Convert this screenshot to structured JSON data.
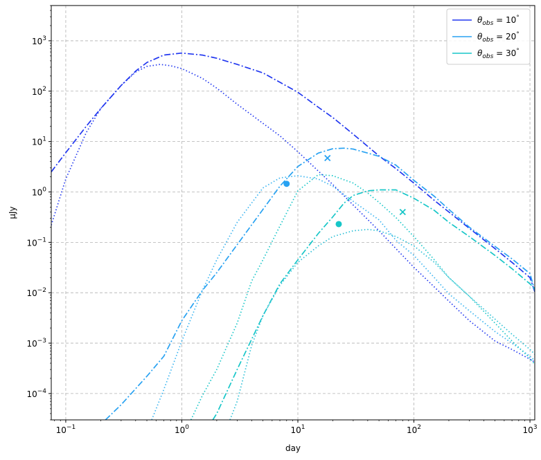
{
  "chart_data": {
    "type": "line",
    "xlabel": "day",
    "ylabel": "μJy",
    "xscale": "log",
    "yscale": "log",
    "xlim": [
      0.075,
      1100
    ],
    "ylim": [
      3e-05,
      5000
    ],
    "grid": true,
    "legend_position": "top-right",
    "x_ticks": [
      {
        "value": 0.1,
        "base": "10",
        "exp": "−1"
      },
      {
        "value": 1,
        "base": "10",
        "exp": "0"
      },
      {
        "value": 10,
        "base": "10",
        "exp": "1"
      },
      {
        "value": 100,
        "base": "10",
        "exp": "2"
      },
      {
        "value": 1000,
        "base": "10",
        "exp": "3"
      }
    ],
    "y_ticks": [
      {
        "value": 0.0001,
        "base": "10",
        "exp": "−4"
      },
      {
        "value": 0.001,
        "base": "10",
        "exp": "−3"
      },
      {
        "value": 0.01,
        "base": "10",
        "exp": "−2"
      },
      {
        "value": 0.1,
        "base": "10",
        "exp": "−1"
      },
      {
        "value": 1,
        "base": "10",
        "exp": "0"
      },
      {
        "value": 10,
        "base": "10",
        "exp": "1"
      },
      {
        "value": 100,
        "base": "10",
        "exp": "2"
      },
      {
        "value": 1000,
        "base": "10",
        "exp": "3"
      }
    ],
    "legend": [
      {
        "symbol": "θ",
        "sub": "obs",
        "rest": " = 10",
        "deg": "°",
        "color": "#2137f0"
      },
      {
        "symbol": "θ",
        "sub": "obs",
        "rest": " = 20",
        "deg": "°",
        "color": "#28a2f2"
      },
      {
        "symbol": "θ",
        "sub": "obs",
        "rest": " = 30",
        "deg": "°",
        "color": "#17c6c8"
      }
    ],
    "series": [
      {
        "style": "dashdot",
        "color": "#2137f0",
        "x": [
          0.075,
          0.1,
          0.15,
          0.2,
          0.3,
          0.4,
          0.5,
          0.7,
          1,
          1.5,
          2,
          3,
          5,
          7,
          10,
          15,
          20,
          30,
          50,
          70,
          100,
          150,
          200,
          300,
          500,
          700,
          1000,
          1100
        ],
        "y": [
          2.5,
          6,
          20,
          45,
          130,
          250,
          370,
          520,
          570,
          520,
          450,
          340,
          230,
          150,
          95,
          48,
          30,
          14,
          5.2,
          2.9,
          1.5,
          0.68,
          0.4,
          0.19,
          0.075,
          0.04,
          0.02,
          0.0105
        ]
      },
      {
        "style": "dotted",
        "color": "#2137f0",
        "x": [
          0.075,
          0.1,
          0.15,
          0.2,
          0.3,
          0.4,
          0.5,
          0.65,
          0.8,
          1,
          1.5,
          2,
          3,
          5,
          7,
          10,
          15,
          20,
          30,
          50,
          70,
          100,
          150,
          200,
          300,
          500,
          700,
          1000,
          1100
        ],
        "y": [
          0.22,
          1.8,
          15,
          45,
          130,
          240,
          310,
          340,
          320,
          280,
          180,
          115,
          55,
          23,
          13,
          6.3,
          2.6,
          1.4,
          0.55,
          0.17,
          0.075,
          0.032,
          0.013,
          0.0068,
          0.0028,
          0.0011,
          0.00075,
          0.00048,
          0.00042
        ]
      },
      {
        "style": "dashdot",
        "color": "#28a2f2",
        "x": [
          0.22,
          0.3,
          0.5,
          0.7,
          1,
          1.5,
          2,
          3,
          5,
          7,
          10,
          15,
          20,
          25,
          30,
          50,
          70,
          100,
          150,
          200,
          300,
          500,
          700,
          1000,
          1100
        ],
        "y": [
          3e-05,
          6e-05,
          0.00022,
          0.00055,
          0.0028,
          0.011,
          0.025,
          0.09,
          0.45,
          1.3,
          3.2,
          5.9,
          7.2,
          7.4,
          7.1,
          5.1,
          3.4,
          1.7,
          0.82,
          0.45,
          0.2,
          0.083,
          0.047,
          0.024,
          0.011
        ]
      },
      {
        "style": "dotted",
        "color": "#3ab4f0",
        "x": [
          0.55,
          0.7,
          1,
          1.5,
          2,
          3,
          5,
          7,
          10,
          15,
          20,
          30,
          50,
          70,
          100,
          150,
          200,
          300,
          500,
          700,
          1000,
          1100
        ],
        "y": [
          3e-05,
          0.00012,
          0.0011,
          0.011,
          0.045,
          0.25,
          1.2,
          1.9,
          2.1,
          1.8,
          1.3,
          0.65,
          0.28,
          0.11,
          0.055,
          0.02,
          0.0095,
          0.0044,
          0.0017,
          0.001,
          0.00055,
          0.00045
        ]
      },
      {
        "style": "dotted",
        "color": "#17c6c8",
        "x": [
          1.2,
          1.5,
          2,
          3,
          4,
          5,
          7,
          10,
          15,
          20,
          30,
          40,
          50,
          70,
          100,
          150,
          200,
          300,
          500,
          700,
          1000,
          1100
        ],
        "y": [
          3e-05,
          9e-05,
          0.0003,
          0.0025,
          0.017,
          0.045,
          0.21,
          1.05,
          2.2,
          2.1,
          1.5,
          0.95,
          0.62,
          0.31,
          0.13,
          0.045,
          0.02,
          0.0085,
          0.0025,
          0.0011,
          0.0005,
          0.00038
        ]
      },
      {
        "style": "dashdot",
        "color": "#17c6c8",
        "x": [
          1.85,
          2,
          3,
          5,
          7,
          10,
          15,
          20,
          25,
          30,
          40,
          50,
          70,
          100,
          150,
          200,
          300,
          500,
          700,
          1000,
          1100
        ],
        "y": [
          3e-05,
          4e-05,
          0.0003,
          0.0035,
          0.015,
          0.045,
          0.15,
          0.32,
          0.6,
          0.85,
          1.05,
          1.1,
          1.1,
          0.75,
          0.43,
          0.25,
          0.13,
          0.055,
          0.03,
          0.015,
          0.012
        ]
      },
      {
        "style": "dotted",
        "color": "#2bc0d6",
        "x": [
          2.6,
          3,
          4,
          5,
          7,
          10,
          15,
          20,
          30,
          40,
          50,
          70,
          100,
          150,
          200,
          300,
          500,
          700,
          1000,
          1100
        ],
        "y": [
          3e-05,
          7e-05,
          0.0009,
          0.0035,
          0.014,
          0.04,
          0.085,
          0.13,
          0.17,
          0.18,
          0.17,
          0.13,
          0.085,
          0.04,
          0.02,
          0.0085,
          0.003,
          0.0015,
          0.00075,
          0.0006
        ]
      }
    ],
    "markers": [
      {
        "x": 8,
        "y": 1.45,
        "shape": "circle",
        "color": "#28a2f2"
      },
      {
        "x": 18,
        "y": 4.7,
        "shape": "x",
        "color": "#28a2f2"
      },
      {
        "x": 22.5,
        "y": 0.23,
        "shape": "circle",
        "color": "#17c6c8"
      },
      {
        "x": 80,
        "y": 0.4,
        "shape": "x",
        "color": "#17c6c8"
      }
    ]
  }
}
